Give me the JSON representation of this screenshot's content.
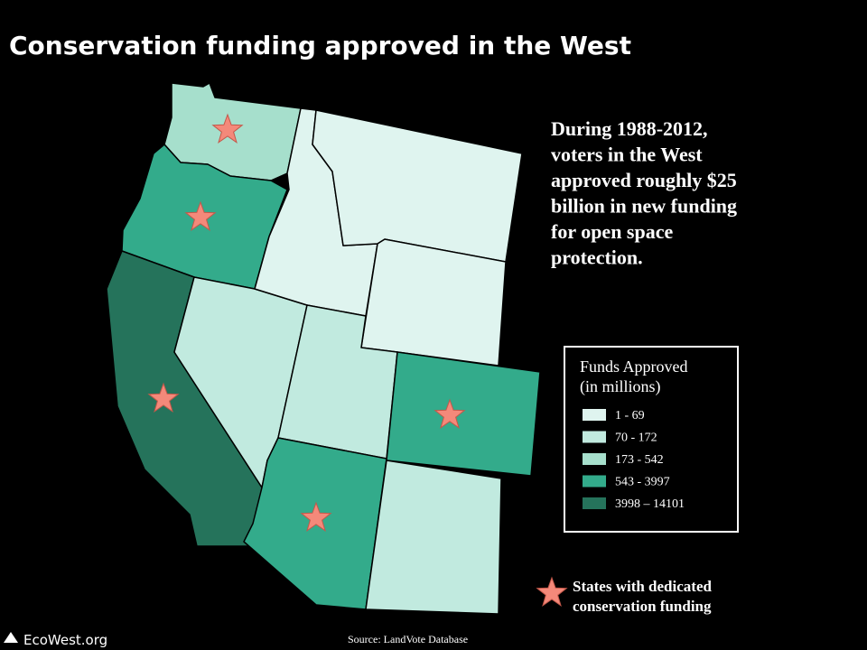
{
  "header": {
    "title": "Conservation funding approved in the West"
  },
  "annotation": {
    "lines": [
      "During 1988-2012,",
      "voters in the West",
      "approved roughly $25",
      "billion in new funding",
      "for open space",
      "protection."
    ]
  },
  "legend": {
    "title_lines": [
      "Funds Approved",
      "(in millions)"
    ],
    "items": [
      {
        "label": "1 - 69",
        "color": "#dff4ef"
      },
      {
        "label": "70 - 172",
        "color": "#c1eadf"
      },
      {
        "label": "173 - 542",
        "color": "#a6dfcc"
      },
      {
        "label": "543 - 3997",
        "color": "#33ab8b"
      },
      {
        "label": "3998 – 14101",
        "color": "#25735b"
      }
    ]
  },
  "star_legend": {
    "label_lines": [
      "States with dedicated",
      "conservation funding"
    ]
  },
  "source": "Source: LandVote Database",
  "logo": "EcoWest.org"
}
